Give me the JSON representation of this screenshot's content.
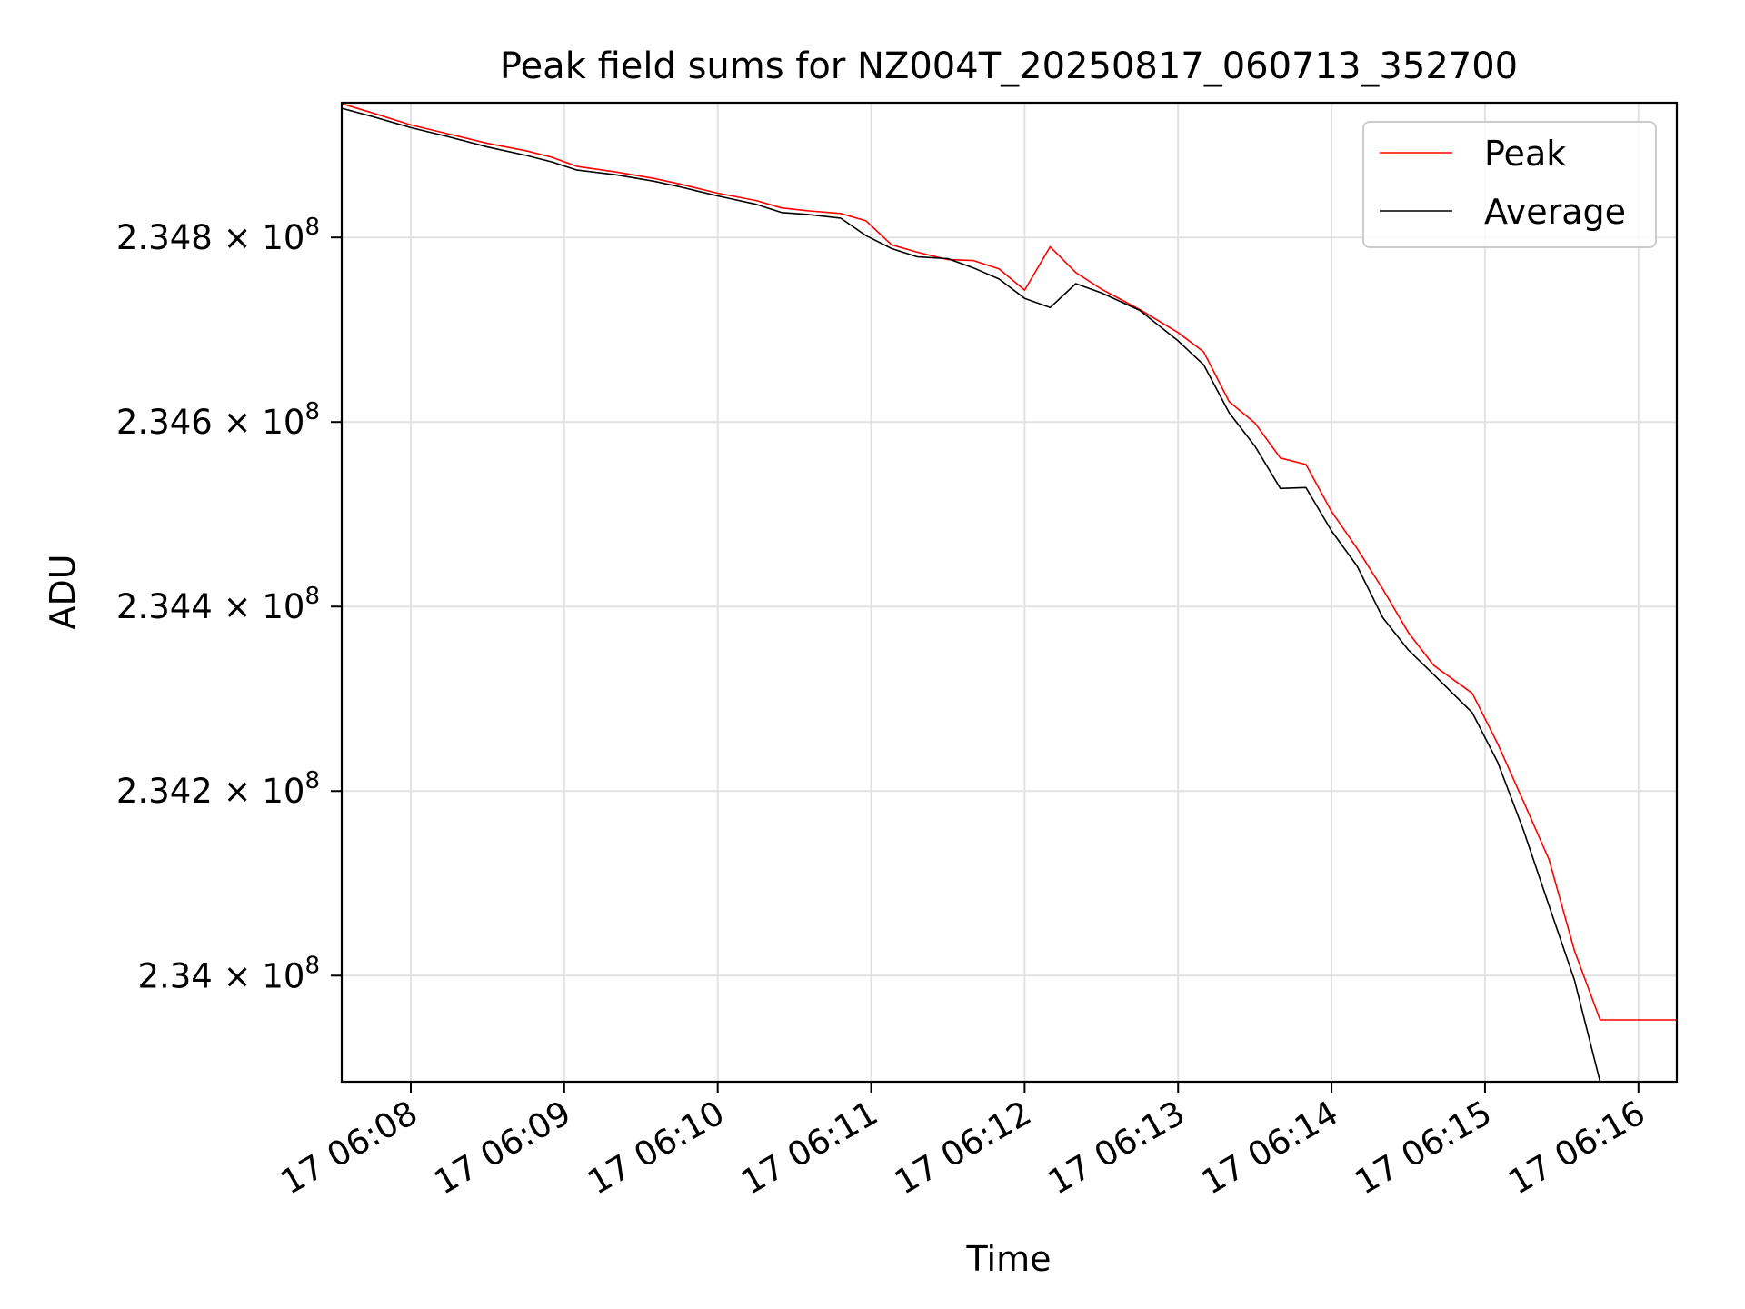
{
  "chart_data": {
    "type": "line",
    "title": "Peak field sums for NZ004T_20250817_060713_352700",
    "xlabel": "Time",
    "ylabel": "ADU",
    "x_unit": "time",
    "xlim": [
      "06:07:33",
      "06:16:15"
    ],
    "ylim": [
      233.885,
      234.946
    ],
    "y_scale_note": "×10^6",
    "x_ticks": [
      {
        "t": "06:08:00",
        "label": "17 06:08"
      },
      {
        "t": "06:09:00",
        "label": "17 06:09"
      },
      {
        "t": "06:10:00",
        "label": "17 06:10"
      },
      {
        "t": "06:11:00",
        "label": "17 06:11"
      },
      {
        "t": "06:12:00",
        "label": "17 06:12"
      },
      {
        "t": "06:13:00",
        "label": "17 06:13"
      },
      {
        "t": "06:14:00",
        "label": "17 06:14"
      },
      {
        "t": "06:15:00",
        "label": "17 06:15"
      },
      {
        "t": "06:16:00",
        "label": "17 06:16"
      }
    ],
    "y_ticks": [
      {
        "value": 234.8,
        "mantissa": "2.348"
      },
      {
        "value": 234.6,
        "mantissa": "2.346"
      },
      {
        "value": 234.4,
        "mantissa": "2.344"
      },
      {
        "value": 234.2,
        "mantissa": "2.342"
      },
      {
        "value": 234.0,
        "mantissa": "2.34"
      }
    ],
    "tick_base": "× 10",
    "tick_exp": "8",
    "grid": true,
    "legend_position": "top-right",
    "series": [
      {
        "name": "Peak",
        "color": "#ff0000",
        "x": [
          "06:07:33",
          "06:07:45",
          "06:08:00",
          "06:08:15",
          "06:08:30",
          "06:08:45",
          "06:08:55",
          "06:09:05",
          "06:09:20",
          "06:09:35",
          "06:09:45",
          "06:10:00",
          "06:10:15",
          "06:10:25",
          "06:10:35",
          "06:10:48",
          "06:10:58",
          "06:11:08",
          "06:11:18",
          "06:11:30",
          "06:11:40",
          "06:11:50",
          "06:12:00",
          "06:12:10",
          "06:12:20",
          "06:12:30",
          "06:12:45",
          "06:13:00",
          "06:13:10",
          "06:13:20",
          "06:13:30",
          "06:13:40",
          "06:13:50",
          "06:14:00",
          "06:14:10",
          "06:14:20",
          "06:14:30",
          "06:14:40",
          "06:14:55",
          "06:15:05",
          "06:15:15",
          "06:15:25",
          "06:15:35",
          "06:15:45",
          "06:16:00",
          "06:16:15"
        ],
        "values": [
          234.945,
          234.935,
          234.922,
          234.912,
          234.902,
          234.894,
          234.887,
          234.877,
          234.871,
          234.864,
          234.858,
          234.848,
          234.84,
          234.832,
          234.829,
          234.826,
          234.818,
          234.792,
          234.784,
          234.776,
          234.775,
          234.766,
          234.743,
          234.79,
          234.762,
          234.744,
          234.722,
          234.697,
          234.676,
          234.622,
          234.599,
          234.561,
          234.554,
          234.503,
          234.463,
          234.419,
          234.372,
          234.336,
          234.306,
          234.251,
          234.189,
          234.126,
          234.027,
          233.952,
          233.952,
          233.952
        ]
      },
      {
        "name": "Average",
        "color": "#000000",
        "x": [
          "06:07:33",
          "06:07:45",
          "06:08:00",
          "06:08:15",
          "06:08:30",
          "06:08:45",
          "06:08:55",
          "06:09:05",
          "06:09:20",
          "06:09:35",
          "06:09:45",
          "06:10:00",
          "06:10:15",
          "06:10:25",
          "06:10:35",
          "06:10:48",
          "06:10:58",
          "06:11:08",
          "06:11:18",
          "06:11:30",
          "06:11:40",
          "06:11:50",
          "06:12:00",
          "06:12:10",
          "06:12:20",
          "06:12:30",
          "06:12:45",
          "06:13:00",
          "06:13:10",
          "06:13:20",
          "06:13:30",
          "06:13:40",
          "06:13:50",
          "06:14:00",
          "06:14:10",
          "06:14:20",
          "06:14:30",
          "06:14:40",
          "06:14:55",
          "06:15:05",
          "06:15:15",
          "06:15:25",
          "06:15:35",
          "06:15:45"
        ],
        "values": [
          234.94,
          234.931,
          234.919,
          234.909,
          234.898,
          234.889,
          234.882,
          234.873,
          234.868,
          234.861,
          234.855,
          234.845,
          234.836,
          234.827,
          234.825,
          234.821,
          234.802,
          234.788,
          234.779,
          234.777,
          234.767,
          234.755,
          234.734,
          234.724,
          234.75,
          234.74,
          234.721,
          234.688,
          234.662,
          234.61,
          234.574,
          234.528,
          234.529,
          234.482,
          234.444,
          234.388,
          234.353,
          234.326,
          234.285,
          234.231,
          234.158,
          234.076,
          233.995,
          233.885
        ]
      }
    ]
  }
}
